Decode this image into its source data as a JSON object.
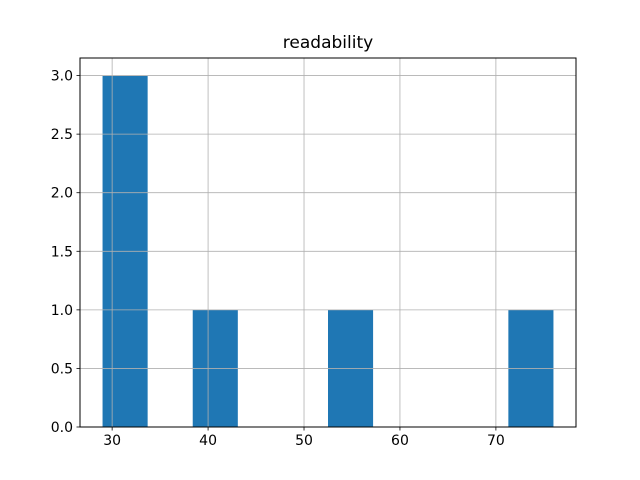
{
  "chart_data": {
    "type": "bar",
    "kind": "histogram",
    "title": "readability",
    "xlabel": "",
    "ylabel": "",
    "bin_edges": [
      29.0,
      33.7,
      38.4,
      43.1,
      47.8,
      52.5,
      57.2,
      61.9,
      66.6,
      71.3,
      76.0
    ],
    "counts": [
      3,
      0,
      1,
      0,
      0,
      1,
      0,
      0,
      0,
      1
    ],
    "xticks": [
      30,
      40,
      50,
      60,
      70
    ],
    "xtick_labels": [
      "30",
      "40",
      "50",
      "60",
      "70"
    ],
    "yticks": [
      0.0,
      0.5,
      1.0,
      1.5,
      2.0,
      2.5,
      3.0
    ],
    "ytick_labels": [
      "0.0",
      "0.5",
      "1.0",
      "1.5",
      "2.0",
      "2.5",
      "3.0"
    ],
    "xlim": [
      26.65,
      78.35
    ],
    "ylim": [
      0,
      3.15
    ],
    "grid": true,
    "grid_on_top": true,
    "legend_position": "none",
    "bar_color": "#1f77b4",
    "grid_color": "#b0b0b0",
    "axis_color": "#000000",
    "background_color": "#ffffff"
  }
}
